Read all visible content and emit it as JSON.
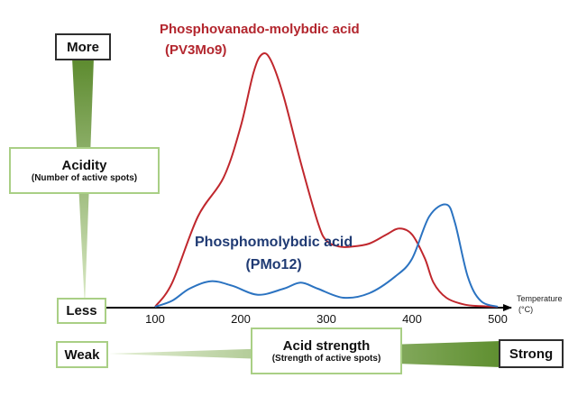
{
  "chart_data": {
    "type": "line",
    "xlabel": "Temperature (°C)",
    "xlabel_line1": "Temperature",
    "xlabel_line2": "(°C)",
    "xlim": [
      100,
      500
    ],
    "xticks": [
      100,
      200,
      300,
      400,
      500
    ],
    "ylabel": "Acidity (Number of active spots)",
    "grid": false,
    "series": [
      {
        "name": "Phosphovanado-molybdic acid (PV3Mo9)",
        "label_line1": "Phosphovanado-molybdic acid",
        "label_line2": "(PV3Mo9)",
        "color": "#c0272d",
        "x": [
          100,
          120,
          150,
          180,
          200,
          215,
          225,
          235,
          250,
          270,
          290,
          300,
          315,
          330,
          350,
          370,
          385,
          400,
          415,
          425,
          440,
          460,
          480,
          500
        ],
        "y": [
          0,
          8,
          30,
          43,
          60,
          78,
          84,
          82,
          70,
          48,
          28,
          22,
          20,
          20,
          21,
          24,
          26,
          24,
          16,
          8,
          3,
          0.8,
          0.2,
          0
        ]
      },
      {
        "name": "Phosphomolybdic acid (PMo12)",
        "label_line1": "Phosphomolybdic acid",
        "label_line2": "(PMo12)",
        "color": "#2b73c1",
        "x": [
          100,
          120,
          140,
          165,
          190,
          220,
          250,
          270,
          290,
          320,
          350,
          380,
          400,
          420,
          440,
          450,
          465,
          480,
          500
        ],
        "y": [
          0,
          2,
          6,
          8.5,
          7,
          4,
          6,
          8,
          6,
          3,
          4.5,
          10,
          16,
          30,
          34,
          28,
          10,
          2,
          0
        ]
      }
    ],
    "y_arrow": {
      "top_label": "More",
      "bottom_label": "Less",
      "title": "Acidity",
      "subtitle": "(Number of active spots)"
    },
    "x_arrow": {
      "left_label": "Weak",
      "right_label": "Strong",
      "title": "Acid strength",
      "subtitle": "(Strength of active spots)"
    }
  }
}
